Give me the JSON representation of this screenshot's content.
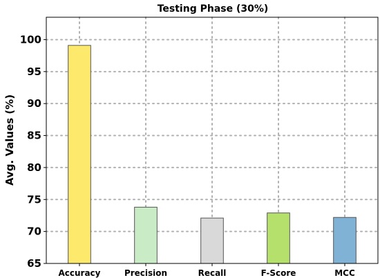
{
  "chart_data": {
    "type": "bar",
    "title": "Testing Phase (30%)",
    "xlabel": "",
    "ylabel": "Avg. Values (%)",
    "categories": [
      "Accuracy",
      "Precision",
      "Recall",
      "F-Score",
      "MCC"
    ],
    "values": [
      99.1,
      73.8,
      72.1,
      72.9,
      72.2
    ],
    "colors": [
      "#fdea6c",
      "#c9ebc6",
      "#d9d9d9",
      "#b5e06b",
      "#7fb2d5"
    ],
    "ylim": [
      65,
      103.5
    ],
    "yticks": [
      65,
      70,
      75,
      80,
      85,
      90,
      95,
      100
    ],
    "grid": true,
    "legend": "none"
  }
}
